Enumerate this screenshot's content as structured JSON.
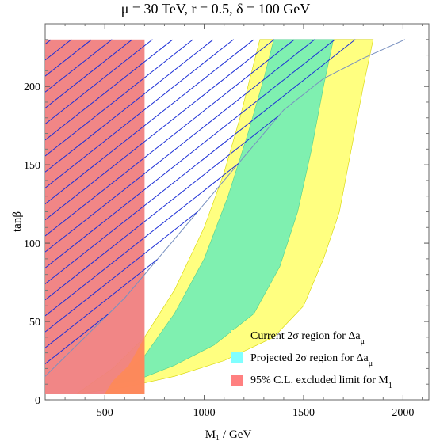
{
  "chart_data": {
    "type": "area",
    "title": "μ = 30 TeV, r = 0.5, δ = 100 GeV",
    "xlabel": "M₁ / GeV",
    "ylabel": "tanβ",
    "xlim": [
      200,
      2130
    ],
    "ylim": [
      0,
      240
    ],
    "grid": false,
    "x_ticks": [
      500,
      1000,
      1500,
      2000
    ],
    "y_ticks": [
      0,
      50,
      100,
      150,
      200
    ],
    "legend_position": "bottom-right",
    "colors": {
      "current": "#ffff80",
      "projected": "#7ff0b0",
      "excluded": "#f08080",
      "overlap": "#ff8a55",
      "hatch": "#1c2fd6",
      "boundary": "#7890c0"
    },
    "series": [
      {
        "name": "Current 2σ region for Δa_μ",
        "kind": "band",
        "left": [
          [
            360,
            4
          ],
          [
            540,
            20
          ],
          [
            700,
            40
          ],
          [
            850,
            70
          ],
          [
            1000,
            110
          ],
          [
            1100,
            145
          ],
          [
            1180,
            180
          ],
          [
            1250,
            215
          ],
          [
            1280,
            230
          ]
        ],
        "right": [
          [
            1850,
            230
          ],
          [
            1800,
            200
          ],
          [
            1740,
            160
          ],
          [
            1680,
            120
          ],
          [
            1600,
            90
          ],
          [
            1500,
            60
          ],
          [
            1350,
            40
          ],
          [
            1100,
            25
          ],
          [
            850,
            15
          ],
          [
            600,
            8
          ],
          [
            380,
            4
          ]
        ]
      },
      {
        "name": "Projected 2σ region for Δa_μ",
        "kind": "band",
        "left": [
          [
            530,
            10
          ],
          [
            700,
            28
          ],
          [
            850,
            55
          ],
          [
            1000,
            90
          ],
          [
            1120,
            130
          ],
          [
            1220,
            170
          ],
          [
            1300,
            205
          ],
          [
            1350,
            230
          ]
        ],
        "right": [
          [
            1650,
            230
          ],
          [
            1600,
            200
          ],
          [
            1540,
            160
          ],
          [
            1470,
            120
          ],
          [
            1380,
            85
          ],
          [
            1250,
            55
          ],
          [
            1050,
            35
          ],
          [
            850,
            22
          ],
          [
            650,
            12
          ]
        ]
      },
      {
        "name": "95% C.L. excluded limit for M₁",
        "kind": "rect",
        "x": [
          200,
          700
        ],
        "y": [
          4,
          230
        ]
      }
    ],
    "hatch_region": {
      "boundary": [
        [
          200,
          15
        ],
        [
          400,
          40
        ],
        [
          600,
          65
        ],
        [
          800,
          95
        ],
        [
          1000,
          125
        ],
        [
          1200,
          155
        ],
        [
          1400,
          185
        ],
        [
          1600,
          205
        ],
        [
          1800,
          218
        ],
        [
          2010,
          230
        ]
      ],
      "top": 230
    }
  },
  "plot": {
    "title_label": "μ = 30 TeV, r = 0.5, δ = 100 GeV",
    "x_axis_label": "M₁ / GeV",
    "y_axis_label": "tanβ"
  },
  "legend": {
    "items": [
      {
        "label": "Current 2σ region for Δa",
        "subscript": "μ",
        "color": "#ffff80"
      },
      {
        "label": "Projected 2σ region for Δa",
        "subscript": "μ",
        "color": "#80ffff"
      },
      {
        "label": "95% C.L. excluded limit for M",
        "subscript": "1",
        "color": "#ff8080"
      }
    ]
  }
}
